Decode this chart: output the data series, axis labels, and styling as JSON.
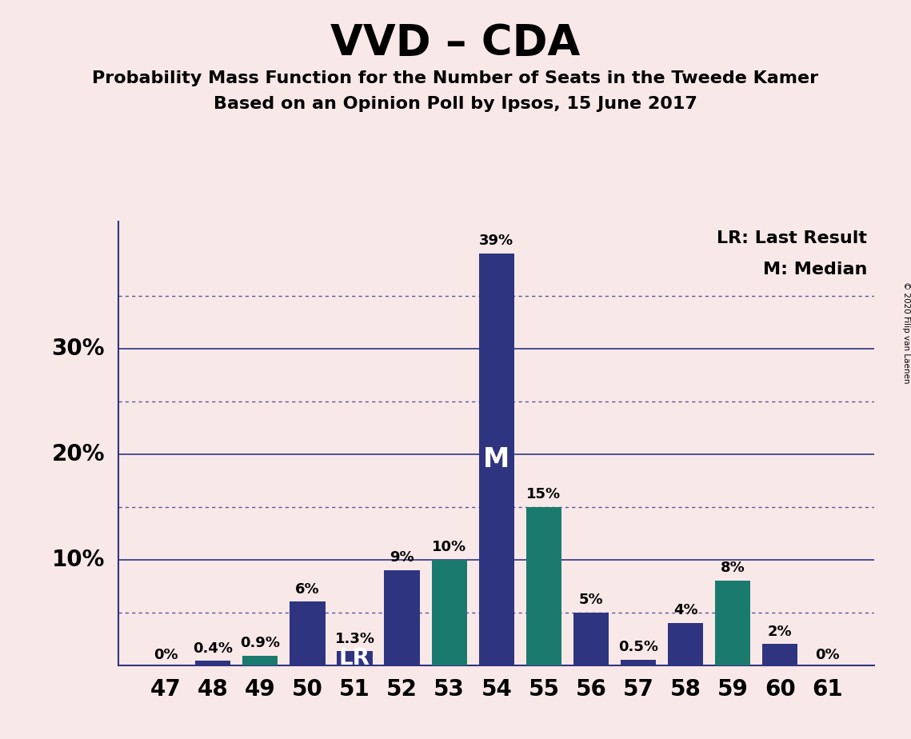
{
  "title": "VVD – CDA",
  "subtitle1": "Probability Mass Function for the Number of Seats in the Tweede Kamer",
  "subtitle2": "Based on an Opinion Poll by Ipsos, 15 June 2017",
  "copyright": "© 2020 Filip van Laenen",
  "legend_lr": "LR: Last Result",
  "legend_m": "M: Median",
  "seats": [
    47,
    48,
    49,
    50,
    51,
    52,
    53,
    54,
    55,
    56,
    57,
    58,
    59,
    60,
    61
  ],
  "values": [
    0.0,
    0.4,
    0.9,
    6.0,
    1.3,
    9.0,
    10.0,
    39.0,
    15.0,
    5.0,
    0.5,
    4.0,
    8.0,
    2.0,
    0.0
  ],
  "labels": [
    "0%",
    "0.4%",
    "0.9%",
    "6%",
    "1.3%",
    "9%",
    "10%",
    "39%",
    "15%",
    "5%",
    "0.5%",
    "4%",
    "8%",
    "2%",
    "0%"
  ],
  "colors": [
    "#2e3480",
    "#2e3480",
    "#1a7a6e",
    "#2e3480",
    "#2e3480",
    "#2e3480",
    "#1a7a6e",
    "#2e3480",
    "#1a7a6e",
    "#2e3480",
    "#2e3480",
    "#2e3480",
    "#1a7a6e",
    "#2e3480",
    "#2e3480"
  ],
  "last_result_seat": 51,
  "median_seat": 54,
  "background_color": "#f9e8e8",
  "bar_dark_blue": "#2e3480",
  "bar_teal": "#1a7a6e",
  "ylim": [
    0,
    42
  ],
  "major_yticks": [
    10,
    20,
    30
  ],
  "dotted_yticks": [
    5,
    15,
    25,
    35
  ]
}
